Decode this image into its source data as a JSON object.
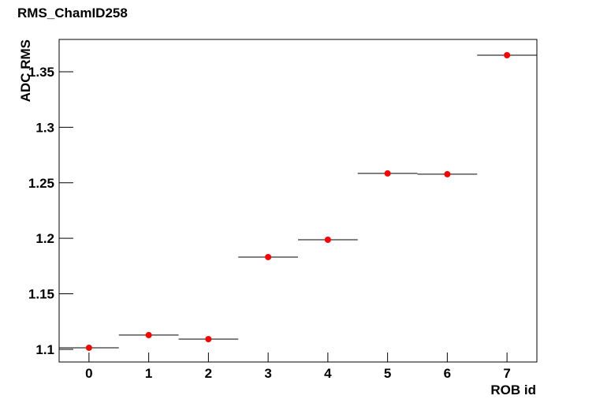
{
  "chart_data": {
    "type": "histogram",
    "title": "RMS_ChamID258",
    "x_label": "ROB id",
    "y_label": "ADC RMS",
    "bins": [
      -0.5,
      0.5,
      1.5,
      2.5,
      3.5,
      4.5,
      5.5,
      6.5,
      7.5
    ],
    "values": [
      1.1014,
      1.1128,
      1.1092,
      1.1831,
      1.1987,
      1.2584,
      1.2577,
      1.3649
    ],
    "color": "#ff0000",
    "line_color": "#000000",
    "xlim": [
      -0.5,
      7.5
    ],
    "xticks": [
      0,
      1,
      2,
      3,
      4,
      5,
      6,
      7
    ],
    "ylim": [
      1.0886,
      1.3791
    ],
    "yticks": [
      1.1,
      1.15,
      1.2,
      1.25,
      1.3,
      1.35
    ]
  }
}
